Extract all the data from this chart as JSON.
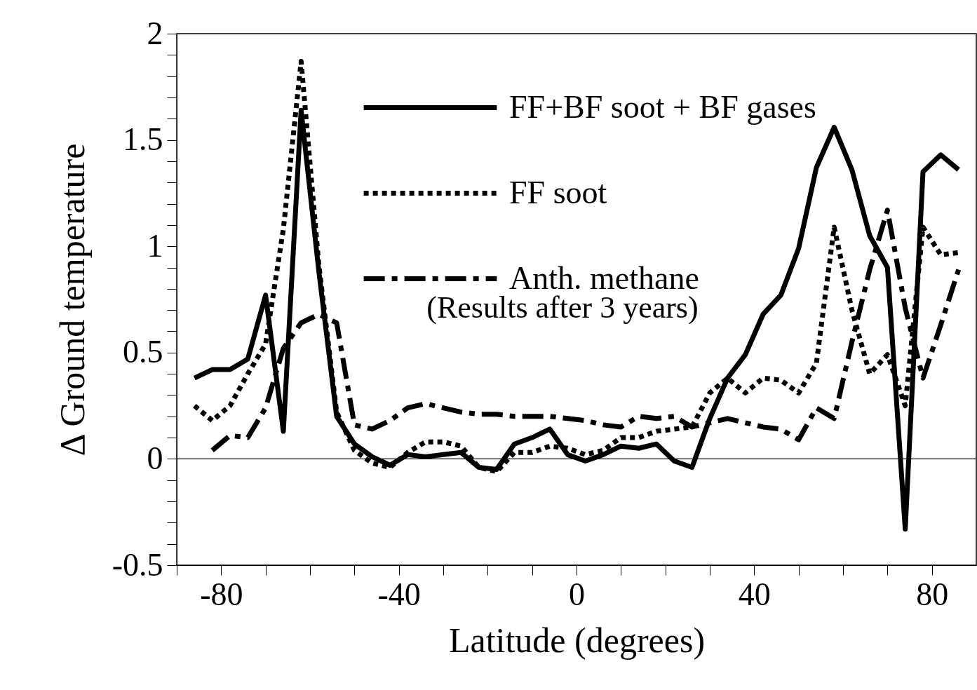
{
  "chart_data": {
    "type": "line",
    "xlabel": "Latitude (degrees)",
    "ylabel": "Δ Ground temperature",
    "annotations": [
      "(Results after 3 years)"
    ],
    "x": [
      -86,
      -82,
      -78,
      -74,
      -70,
      -66,
      -62,
      -58,
      -54,
      -50,
      -46,
      -42,
      -38,
      -34,
      -30,
      -26,
      -22,
      -18,
      -14,
      -10,
      -6,
      -2,
      2,
      6,
      10,
      14,
      18,
      22,
      26,
      30,
      34,
      38,
      42,
      46,
      50,
      54,
      58,
      62,
      66,
      70,
      74,
      78,
      82,
      86
    ],
    "series": [
      {
        "name": "FF+BF soot + BF gases",
        "color": "#000000",
        "line_style": "solid",
        "values": [
          0.38,
          0.42,
          0.42,
          0.47,
          0.77,
          0.13,
          1.64,
          0.88,
          0.2,
          0.07,
          0.01,
          -0.03,
          0.02,
          0.01,
          0.02,
          0.03,
          -0.04,
          -0.05,
          0.07,
          0.1,
          0.14,
          0.02,
          -0.01,
          0.02,
          0.06,
          0.05,
          0.07,
          -0.01,
          -0.04,
          0.19,
          0.38,
          0.49,
          0.68,
          0.77,
          0.99,
          1.37,
          1.56,
          1.36,
          1.05,
          0.9,
          -0.33,
          1.35,
          1.43,
          1.36
        ]
      },
      {
        "name": "FF soot",
        "color": "#000000",
        "line_style": "dotted",
        "values": [
          0.25,
          0.18,
          0.25,
          0.4,
          0.54,
          1.08,
          1.87,
          0.91,
          0.22,
          0.04,
          -0.02,
          -0.04,
          0.03,
          0.08,
          0.08,
          0.06,
          -0.04,
          -0.06,
          0.03,
          0.03,
          0.06,
          0.05,
          0.02,
          0.04,
          0.1,
          0.1,
          0.13,
          0.14,
          0.15,
          0.31,
          0.38,
          0.31,
          0.38,
          0.37,
          0.31,
          0.45,
          1.09,
          0.7,
          0.4,
          0.49,
          0.25,
          1.09,
          0.96,
          0.97
        ]
      },
      {
        "name": "Anth. methane",
        "color": "#000000",
        "line_style": "dashed",
        "values": [
          null,
          0.04,
          0.11,
          0.1,
          0.24,
          0.52,
          0.64,
          0.68,
          0.64,
          0.16,
          0.14,
          0.18,
          0.24,
          0.26,
          0.24,
          0.22,
          0.21,
          0.21,
          0.2,
          0.2,
          0.2,
          0.19,
          0.18,
          0.16,
          0.15,
          0.2,
          0.19,
          0.2,
          0.15,
          0.17,
          0.19,
          0.17,
          0.15,
          0.14,
          0.09,
          0.24,
          0.19,
          0.55,
          0.89,
          1.17,
          0.71,
          0.38,
          0.63,
          0.89
        ]
      }
    ],
    "xlim": [
      -90,
      90
    ],
    "xticks": [
      {
        "value": -90,
        "label": null
      },
      -80,
      {
        "value": -70,
        "label": null
      },
      {
        "value": -60,
        "label": null
      },
      {
        "value": -50,
        "label": null
      },
      -40,
      {
        "value": -30,
        "label": null
      },
      {
        "value": -20,
        "label": null
      },
      {
        "value": -10,
        "label": null
      },
      0,
      {
        "value": 10,
        "label": null
      },
      {
        "value": 20,
        "label": null
      },
      {
        "value": 30,
        "label": null
      },
      40,
      {
        "value": 50,
        "label": null
      },
      {
        "value": 60,
        "label": null
      },
      {
        "value": 70,
        "label": null
      },
      80
    ],
    "ylim": [
      -0.5,
      2
    ],
    "yticks": [
      -0.5,
      {
        "value": -0.4,
        "label": null
      },
      {
        "value": -0.3,
        "label": null
      },
      {
        "value": -0.2,
        "label": null
      },
      {
        "value": -0.1,
        "label": null
      },
      0,
      {
        "value": 0.1,
        "label": null
      },
      {
        "value": 0.2,
        "label": null
      },
      {
        "value": 0.3,
        "label": null
      },
      {
        "value": 0.4,
        "label": null
      },
      0.5,
      {
        "value": 0.6,
        "label": null
      },
      {
        "value": 0.7,
        "label": null
      },
      {
        "value": 0.8,
        "label": null
      },
      {
        "value": 0.9,
        "label": null
      },
      1,
      {
        "value": 1.1,
        "label": null
      },
      {
        "value": 1.2,
        "label": null
      },
      {
        "value": 1.3,
        "label": null
      },
      {
        "value": 1.4,
        "label": null
      },
      1.5,
      {
        "value": 1.6,
        "label": null
      },
      {
        "value": 1.7,
        "label": null
      },
      {
        "value": 1.8,
        "label": null
      },
      {
        "value": 1.9,
        "label": null
      },
      2
    ],
    "ref_lines": [
      {
        "axis": "y",
        "value": 0,
        "color": "#000000"
      }
    ],
    "grid": false,
    "legend": "top",
    "marker": "none"
  }
}
